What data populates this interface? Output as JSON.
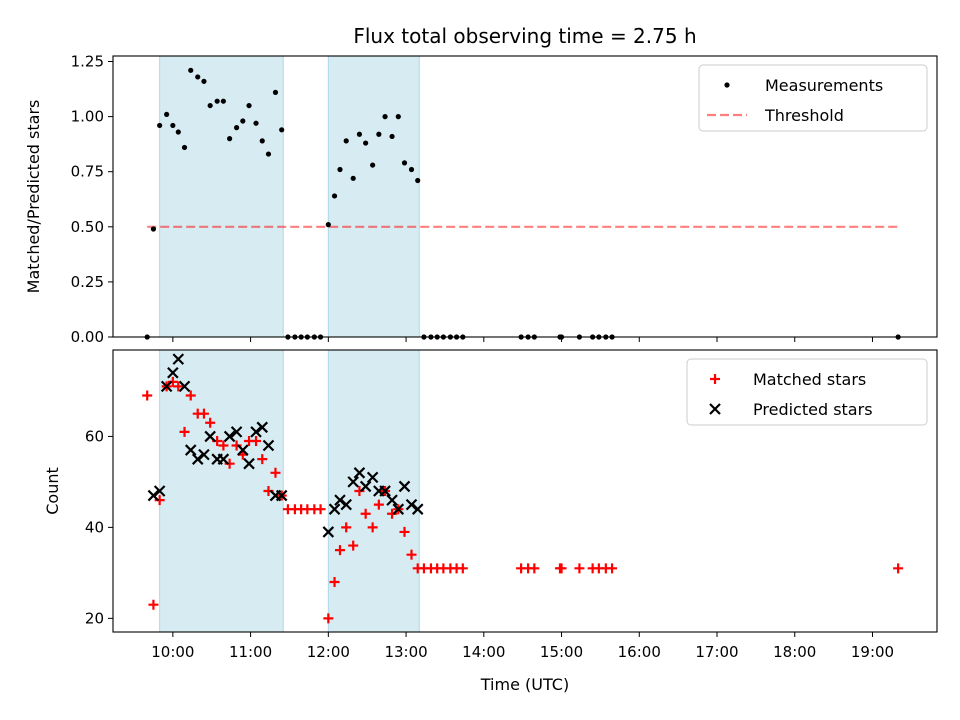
{
  "chart_data": {
    "title": "Flux total observing time = 2.75 h",
    "xlabel": "Time (UTC)",
    "x_ticks": [
      "10:00",
      "11:00",
      "12:00",
      "13:00",
      "14:00",
      "15:00",
      "16:00",
      "17:00",
      "18:00",
      "19:00"
    ],
    "x_tick_hours": [
      10,
      11,
      12,
      13,
      14,
      15,
      16,
      17,
      18,
      19
    ],
    "xlim_hours": [
      9.23,
      19.83
    ],
    "observing_windows_hours": [
      [
        9.83,
        11.42
      ],
      [
        12.0,
        13.17
      ]
    ],
    "window_color": "#add8e6",
    "panels": [
      {
        "type": "scatter",
        "ylabel": "Matched/Predicted stars",
        "ylim": [
          0,
          1.275
        ],
        "y_ticks": [
          0.0,
          0.25,
          0.5,
          0.75,
          1.0,
          1.25
        ],
        "y_tick_labels": [
          "0.00",
          "0.25",
          "0.50",
          "0.75",
          "1.00",
          "1.25"
        ],
        "legend": {
          "position": "upper right",
          "entries": [
            "Measurements",
            "Threshold"
          ]
        },
        "threshold": {
          "name": "Threshold",
          "value": 0.5,
          "x_range_hours": [
            9.67,
            19.33
          ],
          "color": "#ff0000",
          "alpha": 0.5,
          "style": "dashed"
        },
        "series": [
          {
            "name": "Measurements",
            "color": "#000000",
            "x": [
              9.67,
              9.75,
              9.83,
              9.92,
              10.0,
              10.07,
              10.15,
              10.23,
              10.32,
              10.4,
              10.48,
              10.57,
              10.65,
              10.73,
              10.82,
              10.9,
              10.98,
              11.07,
              11.15,
              11.23,
              11.32,
              11.4,
              11.48,
              11.57,
              11.65,
              11.73,
              11.82,
              11.9,
              12.0,
              12.08,
              12.15,
              12.23,
              12.32,
              12.4,
              12.48,
              12.57,
              12.65,
              12.73,
              12.82,
              12.9,
              12.98,
              13.07,
              13.15,
              13.23,
              13.32,
              13.4,
              13.48,
              13.57,
              13.65,
              13.73,
              14.48,
              14.57,
              14.65,
              14.98,
              15.0,
              15.23,
              15.4,
              15.48,
              15.57,
              15.65,
              19.33
            ],
            "y": [
              0,
              0.49,
              0.96,
              1.01,
              0.96,
              0.93,
              0.86,
              1.21,
              1.18,
              1.16,
              1.05,
              1.07,
              1.07,
              0.9,
              0.95,
              0.98,
              1.05,
              0.97,
              0.89,
              0.83,
              1.11,
              0.94,
              0,
              0,
              0,
              0,
              0,
              0,
              0.51,
              0.64,
              0.76,
              0.89,
              0.72,
              0.92,
              0.88,
              0.78,
              0.92,
              1.0,
              0.91,
              1.0,
              0.79,
              0.76,
              0.71,
              0,
              0,
              0,
              0,
              0,
              0,
              0,
              0,
              0,
              0,
              0,
              0,
              0,
              0,
              0,
              0,
              0,
              0
            ]
          }
        ]
      },
      {
        "type": "scatter",
        "ylabel": "Count",
        "ylim": [
          17,
          79
        ],
        "y_ticks": [
          20,
          40,
          60
        ],
        "y_tick_labels": [
          "20",
          "40",
          "60"
        ],
        "legend": {
          "position": "upper right",
          "entries": [
            "Matched stars",
            "Predicted stars"
          ]
        },
        "series": [
          {
            "name": "Matched stars",
            "marker": "+",
            "color": "#ff0000",
            "x": [
              9.67,
              9.75,
              9.83,
              9.92,
              10.0,
              10.07,
              10.15,
              10.23,
              10.32,
              10.4,
              10.48,
              10.57,
              10.65,
              10.73,
              10.82,
              10.9,
              10.98,
              11.07,
              11.15,
              11.23,
              11.32,
              11.4,
              11.48,
              11.57,
              11.65,
              11.73,
              11.82,
              11.9,
              12.0,
              12.08,
              12.15,
              12.23,
              12.32,
              12.4,
              12.48,
              12.57,
              12.65,
              12.73,
              12.82,
              12.9,
              12.98,
              13.07,
              13.15,
              13.23,
              13.32,
              13.4,
              13.48,
              13.57,
              13.65,
              13.73,
              14.48,
              14.57,
              14.65,
              14.98,
              15.0,
              15.23,
              15.4,
              15.48,
              15.57,
              15.65,
              19.33
            ],
            "y": [
              69,
              23,
              46,
              71,
              72,
              71,
              61,
              69,
              65,
              65,
              63,
              59,
              58,
              54,
              58,
              56,
              59,
              59,
              55,
              48,
              52,
              47,
              44,
              44,
              44,
              44,
              44,
              44,
              20,
              28,
              35,
              40,
              36,
              48,
              43,
              40,
              45,
              48,
              43,
              44,
              39,
              34,
              31,
              31,
              31,
              31,
              31,
              31,
              31,
              31,
              31,
              31,
              31,
              31,
              31,
              31,
              31,
              31,
              31,
              31,
              31
            ]
          },
          {
            "name": "Predicted stars",
            "marker": "x",
            "color": "#000000",
            "x": [
              9.75,
              9.83,
              9.92,
              10.0,
              10.07,
              10.15,
              10.23,
              10.32,
              10.4,
              10.48,
              10.57,
              10.65,
              10.73,
              10.82,
              10.9,
              10.98,
              11.07,
              11.15,
              11.23,
              11.32,
              11.4,
              12.0,
              12.08,
              12.15,
              12.23,
              12.32,
              12.4,
              12.48,
              12.57,
              12.65,
              12.73,
              12.82,
              12.9,
              12.98,
              13.07,
              13.15
            ],
            "y": [
              47,
              48,
              71,
              74,
              77,
              71,
              57,
              55,
              56,
              60,
              55,
              55,
              60,
              61,
              57,
              54,
              61,
              62,
              58,
              47,
              47,
              39,
              44,
              46,
              45,
              50,
              52,
              49,
              51,
              48,
              48,
              46,
              44,
              49,
              45,
              44
            ]
          }
        ]
      }
    ]
  }
}
